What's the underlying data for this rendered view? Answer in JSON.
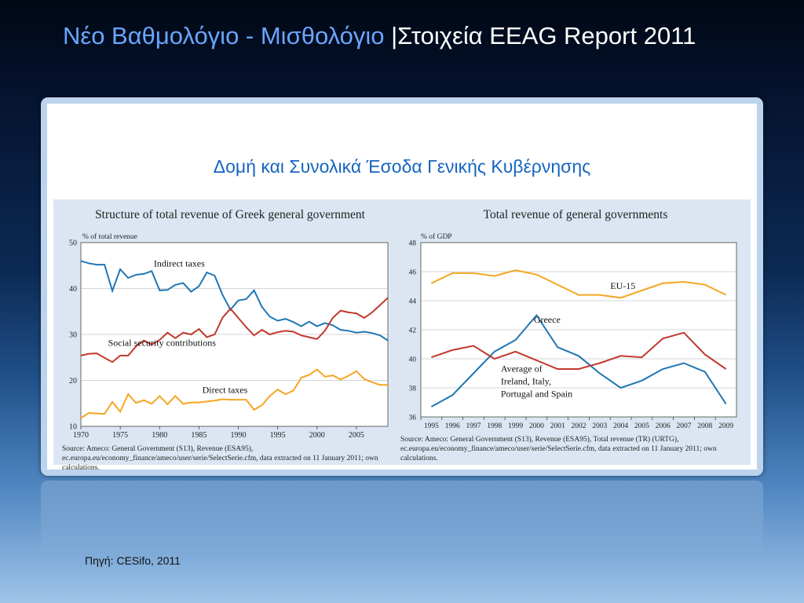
{
  "slide": {
    "title_part1": "Νέο Βαθμολόγιο - Μισθολόγιο ",
    "title_part2": "|Στοιχεία EEAG Report 2011",
    "subtitle": "Δομή και Συνολικά Έσοδα Γενικής Κυβέρνησης",
    "footer": "Πηγή: CESifo, 2011",
    "colors": {
      "title_accent": "#6aa6ff",
      "subtitle": "#1565c0",
      "blue": "#1f77b4",
      "red": "#c0392b",
      "orange": "#f5a623"
    }
  },
  "chart_data": [
    {
      "type": "line",
      "title": "Structure of total revenue of Greek general government",
      "ylabel": "% of total revenue",
      "xlim": [
        1970,
        2009
      ],
      "ylim": [
        10,
        50
      ],
      "yticks": [
        10,
        20,
        30,
        40,
        50
      ],
      "xticks": [
        1970,
        1975,
        1980,
        1985,
        1990,
        1995,
        2000,
        2005
      ],
      "grid": true,
      "x": [
        1970,
        1971,
        1972,
        1973,
        1974,
        1975,
        1976,
        1977,
        1978,
        1979,
        1980,
        1981,
        1982,
        1983,
        1984,
        1985,
        1986,
        1987,
        1988,
        1989,
        1990,
        1991,
        1992,
        1993,
        1994,
        1995,
        1996,
        1997,
        1998,
        1999,
        2000,
        2001,
        2002,
        2003,
        2004,
        2005,
        2006,
        2007,
        2008,
        2009
      ],
      "series": [
        {
          "name": "Indirect taxes",
          "color": "#1f77b4",
          "label_x": 1982.5,
          "label_y": 44.8,
          "values": [
            46.0,
            45.5,
            45.2,
            45.2,
            39.5,
            44.2,
            42.3,
            43.0,
            43.2,
            43.8,
            39.6,
            39.7,
            40.8,
            41.2,
            39.3,
            40.5,
            43.5,
            42.8,
            38.6,
            35.4,
            37.4,
            37.7,
            39.6,
            36.0,
            33.9,
            33.0,
            33.4,
            32.7,
            31.8,
            32.8,
            31.8,
            32.5,
            32.0,
            31.0,
            30.8,
            30.4,
            30.6,
            30.3,
            29.8,
            28.7
          ]
        },
        {
          "name": "Social security contributions",
          "color": "#c0392b",
          "label_x": 1980.3,
          "label_y": 27.5,
          "values": [
            25.4,
            25.8,
            25.9,
            24.9,
            24.0,
            25.4,
            25.4,
            27.4,
            28.7,
            27.8,
            28.8,
            30.4,
            29.2,
            30.4,
            30.0,
            31.2,
            29.4,
            30.0,
            33.7,
            35.6,
            33.6,
            31.6,
            29.8,
            31.0,
            30.0,
            30.5,
            30.8,
            30.6,
            29.8,
            29.4,
            29.0,
            30.8,
            33.6,
            35.2,
            34.8,
            34.6,
            33.6,
            34.8,
            36.4,
            38.0
          ]
        },
        {
          "name": "Direct taxes",
          "color": "#f5a623",
          "label_x": 1988.3,
          "label_y": 17.3,
          "values": [
            11.8,
            12.9,
            12.8,
            12.7,
            15.3,
            13.2,
            17.0,
            15.1,
            15.7,
            14.9,
            16.6,
            14.8,
            16.6,
            14.9,
            15.2,
            15.2,
            15.4,
            15.6,
            15.9,
            15.8,
            15.8,
            15.8,
            13.6,
            14.6,
            16.6,
            18.0,
            17.0,
            17.8,
            20.6,
            21.2,
            22.4,
            20.8,
            21.1,
            20.2,
            21.0,
            22.0,
            20.3,
            19.6,
            19.0,
            19.0
          ]
        }
      ],
      "source": "Source: Ameco: General Government (S13), Revenue (ESA95), ec.europa.eu/economy_finance/ameco/user/serie/SelectSerie.cfm, data extracted on 11 January 2011; own calculations."
    },
    {
      "type": "line",
      "title": "Total revenue of general governments",
      "ylabel": "% of GDP",
      "categories": [
        "1995",
        "1996",
        "1997",
        "1998",
        "1999",
        "2000",
        "2001",
        "2002",
        "2003",
        "2004",
        "2005",
        "2006",
        "2007",
        "2008",
        "2009"
      ],
      "ylim": [
        36,
        48
      ],
      "yticks": [
        36,
        38,
        40,
        42,
        44,
        46,
        48
      ],
      "grid": true,
      "series": [
        {
          "name": "EU-15",
          "color": "#f5a623",
          "label_x": 9.1,
          "label_y": 44.8,
          "values": [
            45.2,
            45.9,
            45.9,
            45.7,
            46.1,
            45.8,
            45.1,
            44.4,
            44.4,
            44.2,
            44.7,
            45.2,
            45.3,
            45.1,
            44.4
          ]
        },
        {
          "name": "Greece",
          "color": "#1f77b4",
          "label_x": 5.5,
          "label_y": 42.5,
          "values": [
            36.7,
            37.5,
            39.0,
            40.5,
            41.3,
            43.0,
            40.8,
            40.2,
            39.0,
            38.0,
            38.5,
            39.3,
            39.7,
            39.1,
            36.9
          ]
        },
        {
          "name_lines": [
            "Average of",
            "Ireland, Italy,",
            "Portugal and Spain"
          ],
          "color": "#c0392b",
          "label_x": 3.3,
          "label_y": 39.1,
          "values": [
            40.1,
            40.6,
            40.9,
            40.0,
            40.5,
            39.9,
            39.3,
            39.3,
            39.7,
            40.2,
            40.1,
            41.4,
            41.8,
            40.3,
            39.3
          ]
        }
      ],
      "source": "Source: Ameco: General Government (S13), Revenue (ESA95), Total revenue (TR) (URTG), ec.europa.eu/economy_finance/ameco/user/serie/SelectSerie.cfm, data extracted on 11 January 2011; own calculations."
    }
  ]
}
